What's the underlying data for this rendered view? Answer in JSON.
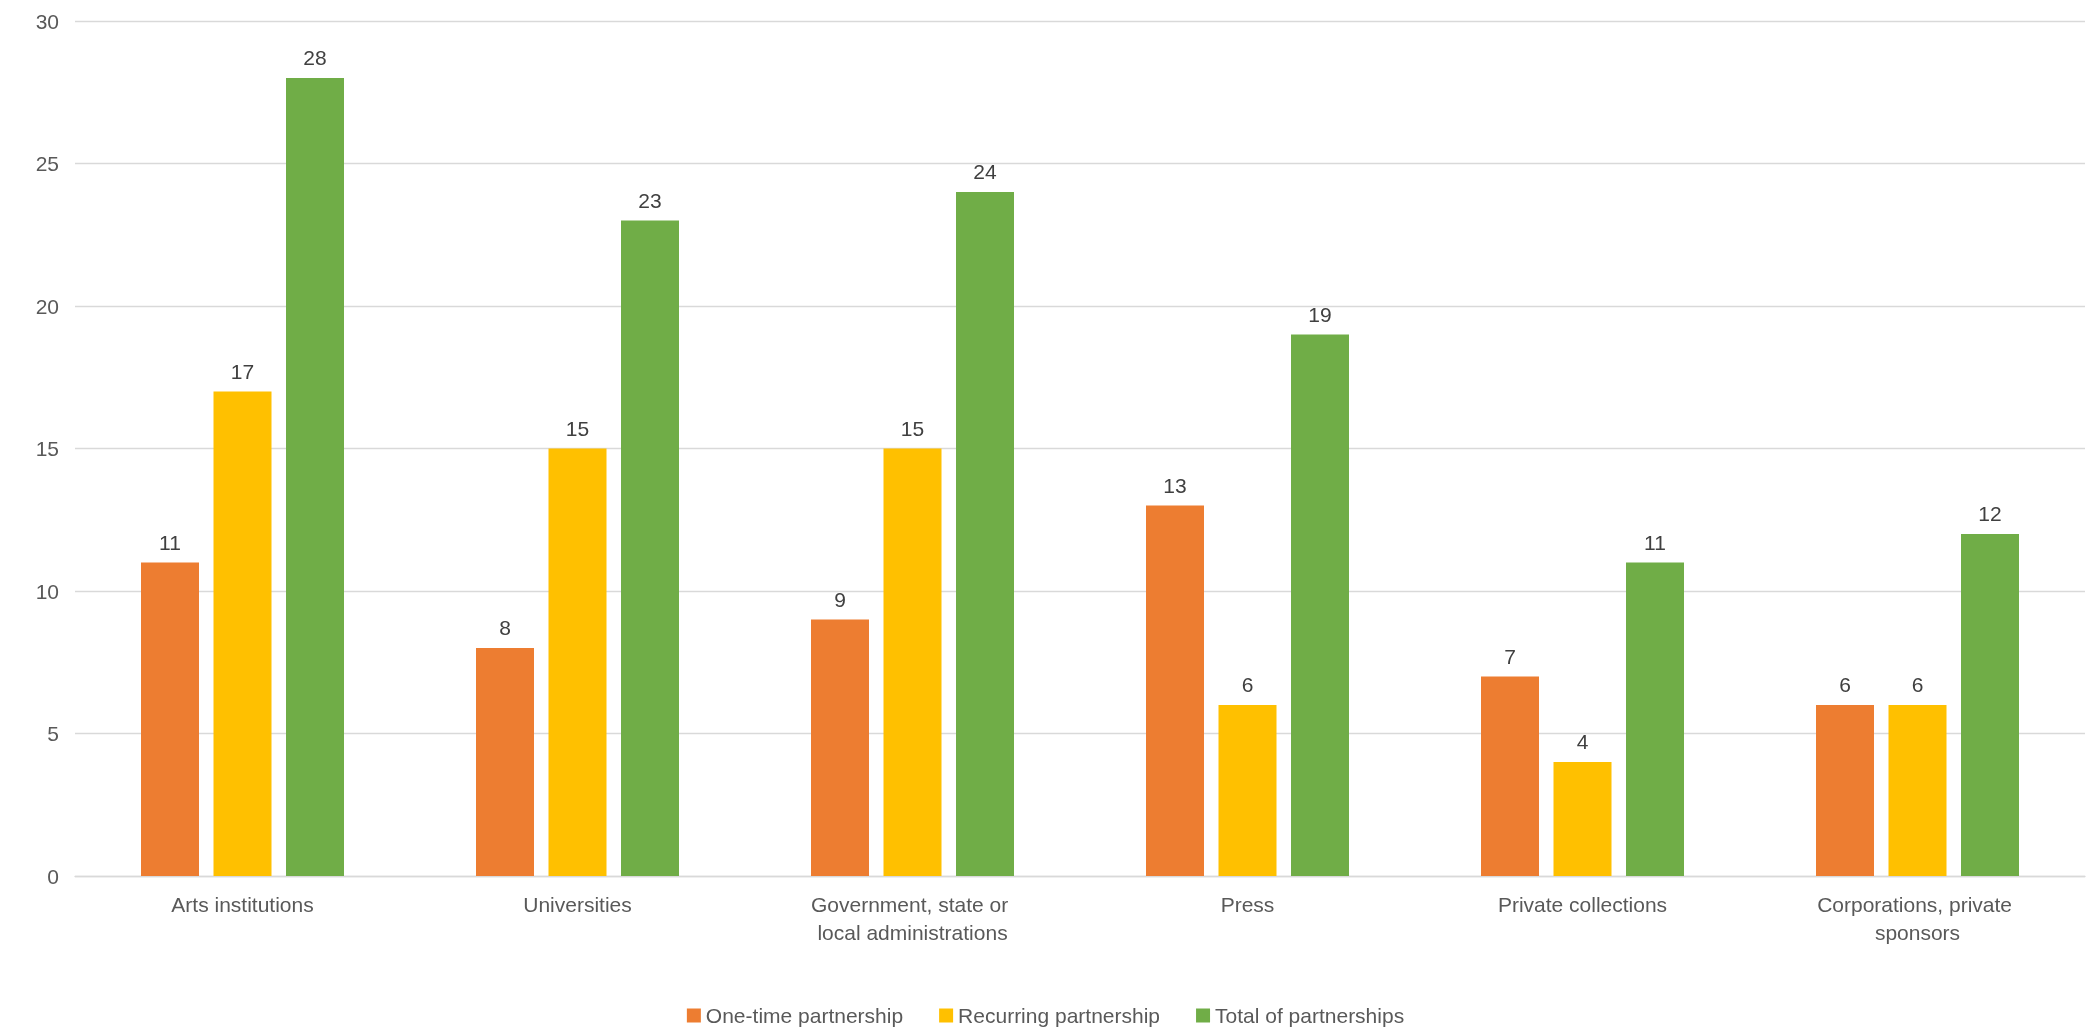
{
  "chart_data": {
    "type": "bar",
    "categories": [
      "Arts institutions",
      "Universities",
      "Government, state or local administrations",
      "Press",
      "Private collections",
      "Corporations, private sponsors"
    ],
    "series": [
      {
        "name": "One-time partnership",
        "color": "#ed7d31",
        "values": [
          11,
          8,
          9,
          13,
          7,
          6
        ]
      },
      {
        "name": "Recurring partnership",
        "color": "#ffc000",
        "values": [
          17,
          15,
          15,
          6,
          4,
          6
        ]
      },
      {
        "name": "Total of partnerships",
        "color": "#70ad47",
        "values": [
          28,
          23,
          24,
          19,
          11,
          12
        ]
      }
    ],
    "ylim": [
      0,
      30
    ],
    "yticks": [
      0,
      5,
      10,
      15,
      20,
      25,
      30
    ],
    "grid": "y",
    "legend": "bottom",
    "data_labels": true
  }
}
